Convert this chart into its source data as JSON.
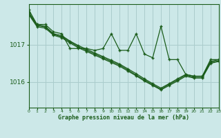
{
  "bg_color": "#cce8e8",
  "grid_color": "#aacccc",
  "line_color": "#1a5c1a",
  "xlabel": "Graphe pression niveau de la mer (hPa)",
  "xlim": [
    0,
    23
  ],
  "ylim": [
    1015.3,
    1018.1
  ],
  "yticks": [
    1016.0,
    1017.0
  ],
  "xticks": [
    0,
    1,
    2,
    3,
    4,
    5,
    6,
    7,
    8,
    9,
    10,
    11,
    12,
    13,
    14,
    15,
    16,
    17,
    18,
    19,
    20,
    21,
    22,
    23
  ],
  "series_main": [
    1017.95,
    1017.55,
    1017.55,
    1017.35,
    1017.3,
    1016.9,
    1016.9,
    1016.9,
    1016.85,
    1016.9,
    1017.3,
    1016.85,
    1016.85,
    1017.3,
    1016.75,
    1016.65,
    1017.5,
    1016.6,
    1016.6,
    1016.2,
    1016.15,
    1016.15,
    1016.6,
    1016.6
  ],
  "series_smooth1": [
    1017.88,
    1017.55,
    1017.5,
    1017.3,
    1017.25,
    1017.1,
    1016.98,
    1016.88,
    1016.78,
    1016.68,
    1016.58,
    1016.48,
    1016.35,
    1016.22,
    1016.08,
    1015.95,
    1015.83,
    1015.95,
    1016.08,
    1016.2,
    1016.15,
    1016.15,
    1016.55,
    1016.6
  ],
  "series_smooth2": [
    1017.85,
    1017.52,
    1017.48,
    1017.28,
    1017.22,
    1017.08,
    1016.95,
    1016.85,
    1016.75,
    1016.65,
    1016.55,
    1016.45,
    1016.32,
    1016.18,
    1016.05,
    1015.92,
    1015.8,
    1015.93,
    1016.05,
    1016.18,
    1016.12,
    1016.12,
    1016.52,
    1016.57
  ],
  "series_smooth3": [
    1017.82,
    1017.49,
    1017.45,
    1017.26,
    1017.19,
    1017.05,
    1016.92,
    1016.82,
    1016.72,
    1016.62,
    1016.52,
    1016.42,
    1016.29,
    1016.16,
    1016.02,
    1015.9,
    1015.78,
    1015.9,
    1016.02,
    1016.15,
    1016.1,
    1016.1,
    1016.5,
    1016.55
  ]
}
